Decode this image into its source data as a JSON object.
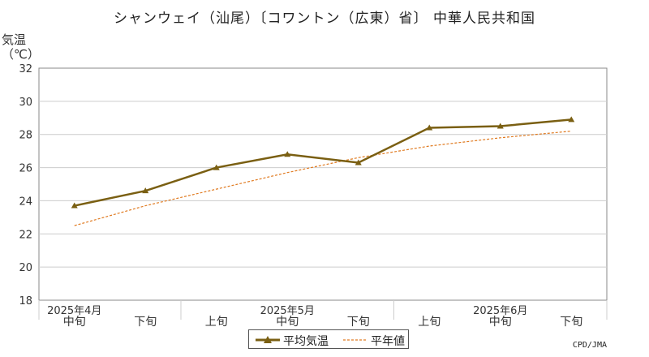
{
  "title": "シャンウェイ（汕尾）〔コワントン（広東）省〕 中華人民共和国",
  "ylabel_line1": "気温",
  "ylabel_line2": "（℃）",
  "credit": "CPD/JMA",
  "colors": {
    "series": "#7a5f12",
    "normal": "#e07a20",
    "grid": "#cccccc",
    "axis": "#888888"
  },
  "chart_data": {
    "type": "line",
    "ylim": [
      18,
      32
    ],
    "yticks": [
      18,
      20,
      22,
      24,
      26,
      28,
      30,
      32
    ],
    "grid": true,
    "legend_position": "bottom",
    "categories": [
      {
        "label": "中旬",
        "month": "2025年4月"
      },
      {
        "label": "下旬",
        "month": ""
      },
      {
        "label": "上旬",
        "month": ""
      },
      {
        "label": "中旬",
        "month": "2025年5月"
      },
      {
        "label": "下旬",
        "month": ""
      },
      {
        "label": "上旬",
        "month": ""
      },
      {
        "label": "中旬",
        "month": "2025年6月"
      },
      {
        "label": "下旬",
        "month": ""
      }
    ],
    "series": [
      {
        "name": "平均気温",
        "style": "solid-triangle",
        "values": [
          23.7,
          24.6,
          26.0,
          26.8,
          26.3,
          28.4,
          28.5,
          28.9
        ]
      },
      {
        "name": "平年値",
        "style": "dashed",
        "values": [
          22.5,
          23.7,
          24.7,
          25.7,
          26.6,
          27.3,
          27.8,
          28.2
        ]
      }
    ]
  }
}
